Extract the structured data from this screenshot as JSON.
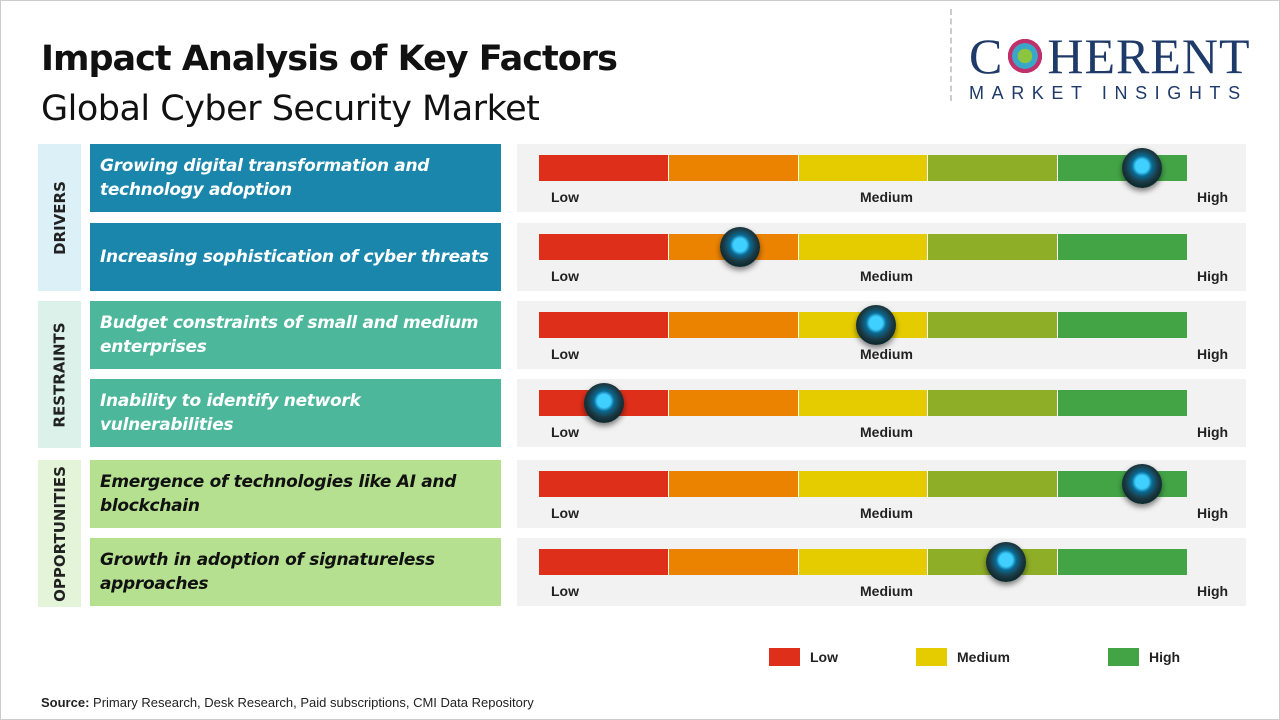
{
  "header": {
    "title": "Impact Analysis of Key Factors",
    "subtitle": "Global Cyber Security Market"
  },
  "logo": {
    "name": "COHERENT",
    "tagline": "MARKET INSIGHTS"
  },
  "scale": {
    "low": "Low",
    "medium": "Medium",
    "high": "High",
    "segment_colors": [
      "#de2f1a",
      "#ec8300",
      "#e5cc00",
      "#8fae27",
      "#43a446"
    ],
    "range": [
      0,
      1
    ]
  },
  "categories": [
    {
      "label": "DRIVERS",
      "bg": "#dcf0f8",
      "box": "#1a86ab",
      "text": "#ffffff",
      "factors": [
        {
          "label": "Growing digital transformation  and technology adoption",
          "impact": 0.93
        },
        {
          "label": "Increasing sophistication  of cyber threats",
          "impact": 0.31
        }
      ]
    },
    {
      "label": "RESTRAINTS",
      "bg": "#dbf1ea",
      "box": "#4cb79b",
      "text": "#ffffff",
      "factors": [
        {
          "label": "Budget constraints of small and medium enterprises",
          "impact": 0.52
        },
        {
          "label": "Inability to identify network vulnerabilities",
          "impact": 0.1
        }
      ]
    },
    {
      "label": "OPPORTUNITIES",
      "bg": "#e4f4d8",
      "box": "#b5e090",
      "text": "#111111",
      "factors": [
        {
          "label": "Emergence  of technologies  like AI and blockchain",
          "impact": 0.93
        },
        {
          "label": "Growth in adoption of signatureless approaches",
          "impact": 0.72
        }
      ]
    }
  ],
  "legend": [
    {
      "label": "Low",
      "color": "#de2f1a"
    },
    {
      "label": "Medium",
      "color": "#e5cc00"
    },
    {
      "label": "High",
      "color": "#43a446"
    }
  ],
  "source": {
    "label": "Source:",
    "text": " Primary Research, Desk Research, Paid subscriptions, CMI Data Repository"
  }
}
